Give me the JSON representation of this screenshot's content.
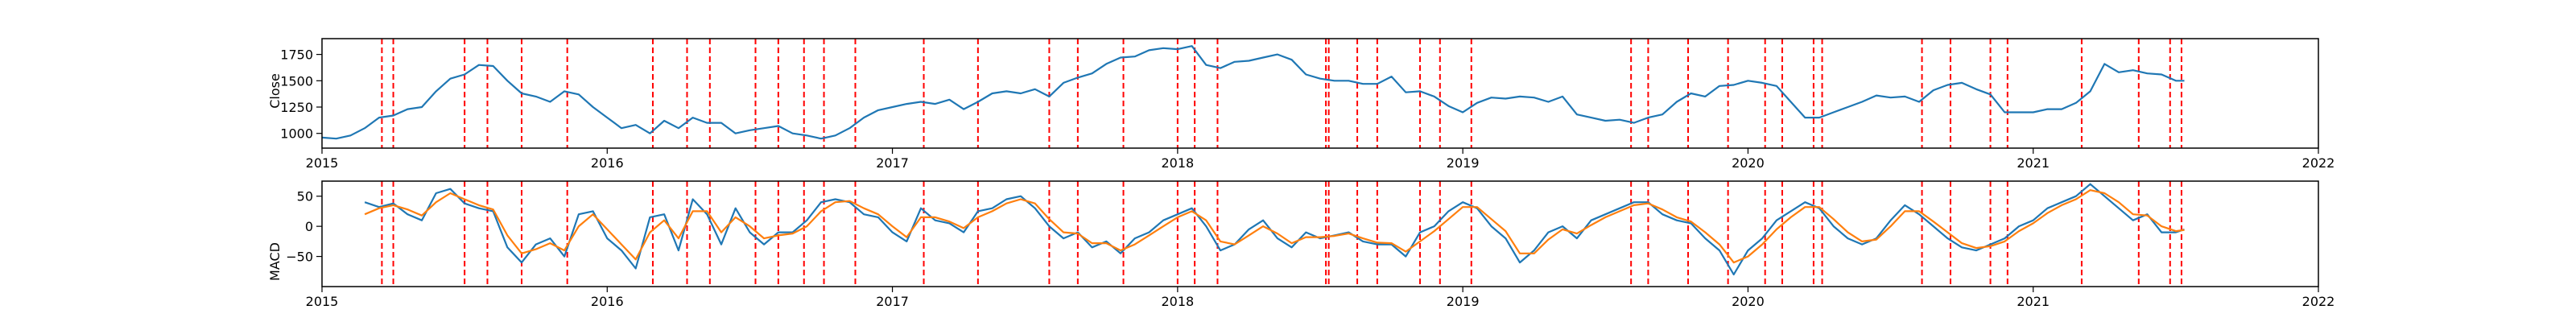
{
  "chart_data": [
    {
      "type": "line",
      "ylabel": "Close",
      "xlim": [
        2015.0,
        2022.0
      ],
      "ylim": [
        860,
        1900
      ],
      "x_ticks": [
        2015,
        2016,
        2017,
        2018,
        2019,
        2020,
        2021,
        2022
      ],
      "x_tick_labels": [
        "2015",
        "2016",
        "2017",
        "2018",
        "2019",
        "2020",
        "2021",
        "2022"
      ],
      "y_ticks": [
        1000,
        1250,
        1500,
        1750
      ],
      "y_tick_labels": [
        "1000",
        "1250",
        "1500",
        "1750"
      ],
      "grid": false,
      "colors": {
        "close": "#1f77b4",
        "events": "#ff0000"
      },
      "series": [
        {
          "x": [
            2015.0,
            2015.05,
            2015.1,
            2015.15,
            2015.2,
            2015.25,
            2015.3,
            2015.35,
            2015.4,
            2015.45,
            2015.5,
            2015.55,
            2015.6,
            2015.65,
            2015.7,
            2015.75,
            2015.8,
            2015.85,
            2015.9,
            2015.95,
            2016.0,
            2016.05,
            2016.1,
            2016.15,
            2016.2,
            2016.25,
            2016.3,
            2016.35,
            2016.4,
            2016.45,
            2016.5,
            2016.55,
            2016.6,
            2016.65,
            2016.7,
            2016.75,
            2016.8,
            2016.85,
            2016.9,
            2016.95,
            2017.0,
            2017.05,
            2017.1,
            2017.15,
            2017.2,
            2017.25,
            2017.3,
            2017.35,
            2017.4,
            2017.45,
            2017.5,
            2017.55,
            2017.6,
            2017.65,
            2017.7,
            2017.75,
            2017.8,
            2017.85,
            2017.9,
            2017.95,
            2018.0,
            2018.05,
            2018.1,
            2018.15,
            2018.2,
            2018.25,
            2018.3,
            2018.35,
            2018.4,
            2018.45,
            2018.5,
            2018.55,
            2018.6,
            2018.65,
            2018.7,
            2018.75,
            2018.8,
            2018.85,
            2018.9,
            2018.95,
            2019.0,
            2019.05,
            2019.1,
            2019.15,
            2019.2,
            2019.25,
            2019.3,
            2019.35,
            2019.4,
            2019.45,
            2019.5,
            2019.55,
            2019.6,
            2019.65,
            2019.7,
            2019.75,
            2019.8,
            2019.85,
            2019.9,
            2019.95,
            2020.0,
            2020.05,
            2020.1,
            2020.15,
            2020.2,
            2020.25,
            2020.3,
            2020.35,
            2020.4,
            2020.45,
            2020.5,
            2020.55,
            2020.6,
            2020.65,
            2020.7,
            2020.75,
            2020.8,
            2020.85,
            2020.9,
            2020.95,
            2021.0,
            2021.05,
            2021.1,
            2021.15,
            2021.2,
            2021.25,
            2021.3,
            2021.35,
            2021.4,
            2021.45,
            2021.5,
            2021.53
          ],
          "y": [
            960,
            950,
            980,
            1050,
            1150,
            1170,
            1230,
            1250,
            1400,
            1520,
            1560,
            1650,
            1640,
            1500,
            1380,
            1350,
            1300,
            1400,
            1370,
            1250,
            1150,
            1050,
            1080,
            1000,
            1120,
            1050,
            1150,
            1100,
            1100,
            1000,
            1030,
            1050,
            1070,
            1000,
            980,
            950,
            980,
            1050,
            1150,
            1220,
            1250,
            1280,
            1300,
            1280,
            1320,
            1230,
            1300,
            1380,
            1400,
            1380,
            1420,
            1350,
            1480,
            1530,
            1570,
            1660,
            1720,
            1730,
            1790,
            1810,
            1800,
            1830,
            1650,
            1620,
            1680,
            1690,
            1720,
            1750,
            1700,
            1560,
            1520,
            1500,
            1500,
            1470,
            1470,
            1540,
            1390,
            1400,
            1350,
            1260,
            1200,
            1290,
            1340,
            1330,
            1350,
            1340,
            1300,
            1350,
            1180,
            1150,
            1120,
            1130,
            1100,
            1150,
            1180,
            1300,
            1380,
            1350,
            1450,
            1460,
            1500,
            1480,
            1450,
            1300,
            1150,
            1150,
            1200,
            1250,
            1300,
            1360,
            1340,
            1350,
            1300,
            1410,
            1460,
            1480,
            1420,
            1370,
            1200,
            1200,
            1200,
            1230,
            1230,
            1290,
            1400,
            1660,
            1580,
            1600,
            1570,
            1560,
            1500,
            1500
          ]
        }
      ]
    },
    {
      "type": "line",
      "ylabel": "MACD",
      "xlim": [
        2015.0,
        2022.0
      ],
      "ylim": [
        -100,
        75
      ],
      "x_ticks": [
        2015,
        2016,
        2017,
        2018,
        2019,
        2020,
        2021,
        2022
      ],
      "x_tick_labels": [
        "2015",
        "2016",
        "2017",
        "2018",
        "2019",
        "2020",
        "2021",
        "2022"
      ],
      "y_ticks": [
        -50,
        0,
        50
      ],
      "y_tick_labels": [
        "−50",
        "0",
        "50"
      ],
      "grid": false,
      "colors": {
        "macd": "#1f77b4",
        "signal": "#ff7f0e",
        "events": "#ff0000"
      },
      "series": [
        {
          "x": [
            2015.15,
            2015.2,
            2015.25,
            2015.3,
            2015.35,
            2015.4,
            2015.45,
            2015.5,
            2015.55,
            2015.6,
            2015.65,
            2015.7,
            2015.75,
            2015.8,
            2015.85,
            2015.9,
            2015.95,
            2016.0,
            2016.05,
            2016.1,
            2016.15,
            2016.2,
            2016.25,
            2016.3,
            2016.35,
            2016.4,
            2016.45,
            2016.5,
            2016.55,
            2016.6,
            2016.65,
            2016.7,
            2016.75,
            2016.8,
            2016.85,
            2016.9,
            2016.95,
            2017.0,
            2017.05,
            2017.1,
            2017.15,
            2017.2,
            2017.25,
            2017.3,
            2017.35,
            2017.4,
            2017.45,
            2017.5,
            2017.55,
            2017.6,
            2017.65,
            2017.7,
            2017.75,
            2017.8,
            2017.85,
            2017.9,
            2017.95,
            2018.0,
            2018.05,
            2018.1,
            2018.15,
            2018.2,
            2018.25,
            2018.3,
            2018.35,
            2018.4,
            2018.45,
            2018.5,
            2018.55,
            2018.6,
            2018.65,
            2018.7,
            2018.75,
            2018.8,
            2018.85,
            2018.9,
            2018.95,
            2019.0,
            2019.05,
            2019.1,
            2019.15,
            2019.2,
            2019.25,
            2019.3,
            2019.35,
            2019.4,
            2019.45,
            2019.5,
            2019.55,
            2019.6,
            2019.65,
            2019.7,
            2019.75,
            2019.8,
            2019.85,
            2019.9,
            2019.95,
            2020.0,
            2020.05,
            2020.1,
            2020.15,
            2020.2,
            2020.25,
            2020.3,
            2020.35,
            2020.4,
            2020.45,
            2020.5,
            2020.55,
            2020.6,
            2020.65,
            2020.7,
            2020.75,
            2020.8,
            2020.85,
            2020.9,
            2020.95,
            2021.0,
            2021.05,
            2021.1,
            2021.15,
            2021.2,
            2021.25,
            2021.3,
            2021.35,
            2021.4,
            2021.45,
            2021.5,
            2021.53
          ],
          "y": [
            40,
            32,
            38,
            20,
            10,
            55,
            62,
            38,
            30,
            25,
            -35,
            -60,
            -30,
            -20,
            -50,
            20,
            25,
            -20,
            -40,
            -70,
            15,
            20,
            -40,
            45,
            20,
            -30,
            30,
            -10,
            -30,
            -10,
            -10,
            10,
            40,
            45,
            40,
            20,
            15,
            -10,
            -25,
            30,
            10,
            5,
            -10,
            25,
            30,
            45,
            50,
            30,
            0,
            -20,
            -10,
            -35,
            -25,
            -45,
            -20,
            -10,
            10,
            20,
            30,
            0,
            -40,
            -30,
            -5,
            10,
            -20,
            -35,
            -10,
            -20,
            -15,
            -10,
            -25,
            -30,
            -30,
            -50,
            -10,
            0,
            25,
            40,
            30,
            0,
            -20,
            -60,
            -40,
            -10,
            0,
            -20,
            10,
            20,
            30,
            40,
            40,
            20,
            10,
            5,
            -20,
            -40,
            -80,
            -40,
            -20,
            10,
            25,
            40,
            30,
            0,
            -20,
            -30,
            -20,
            10,
            35,
            20,
            0,
            -20,
            -35,
            -40,
            -30,
            -20,
            0,
            10,
            30,
            40,
            50,
            70,
            50,
            30,
            10,
            20,
            -10,
            -10,
            -5
          ]
        },
        {
          "x": [
            2015.15,
            2015.2,
            2015.25,
            2015.3,
            2015.35,
            2015.4,
            2015.45,
            2015.5,
            2015.55,
            2015.6,
            2015.65,
            2015.7,
            2015.75,
            2015.8,
            2015.85,
            2015.9,
            2015.95,
            2016.0,
            2016.05,
            2016.1,
            2016.15,
            2016.2,
            2016.25,
            2016.3,
            2016.35,
            2016.4,
            2016.45,
            2016.5,
            2016.55,
            2016.6,
            2016.65,
            2016.7,
            2016.75,
            2016.8,
            2016.85,
            2016.9,
            2016.95,
            2017.0,
            2017.05,
            2017.1,
            2017.15,
            2017.2,
            2017.25,
            2017.3,
            2017.35,
            2017.4,
            2017.45,
            2017.5,
            2017.55,
            2017.6,
            2017.65,
            2017.7,
            2017.75,
            2017.8,
            2017.85,
            2017.9,
            2017.95,
            2018.0,
            2018.05,
            2018.1,
            2018.15,
            2018.2,
            2018.25,
            2018.3,
            2018.35,
            2018.4,
            2018.45,
            2018.5,
            2018.55,
            2018.6,
            2018.65,
            2018.7,
            2018.75,
            2018.8,
            2018.85,
            2018.9,
            2018.95,
            2019.0,
            2019.05,
            2019.1,
            2019.15,
            2019.2,
            2019.25,
            2019.3,
            2019.35,
            2019.4,
            2019.45,
            2019.5,
            2019.55,
            2019.6,
            2019.65,
            2019.7,
            2019.75,
            2019.8,
            2019.85,
            2019.9,
            2019.95,
            2020.0,
            2020.05,
            2020.1,
            2020.15,
            2020.2,
            2020.25,
            2020.3,
            2020.35,
            2020.4,
            2020.45,
            2020.5,
            2020.55,
            2020.6,
            2020.65,
            2020.7,
            2020.75,
            2020.8,
            2020.85,
            2020.9,
            2020.95,
            2021.0,
            2021.05,
            2021.1,
            2021.15,
            2021.2,
            2021.25,
            2021.3,
            2021.35,
            2021.4,
            2021.45,
            2021.5,
            2021.53
          ],
          "y": [
            20,
            30,
            35,
            28,
            18,
            40,
            55,
            45,
            35,
            28,
            -15,
            -45,
            -38,
            -28,
            -40,
            0,
            20,
            -5,
            -30,
            -55,
            -10,
            10,
            -20,
            25,
            25,
            -10,
            15,
            0,
            -20,
            -15,
            -12,
            0,
            25,
            40,
            42,
            30,
            20,
            0,
            -18,
            15,
            15,
            8,
            -3,
            15,
            25,
            38,
            45,
            38,
            12,
            -10,
            -12,
            -28,
            -28,
            -40,
            -30,
            -15,
            0,
            15,
            25,
            10,
            -25,
            -30,
            -15,
            0,
            -12,
            -28,
            -18,
            -18,
            -16,
            -12,
            -20,
            -27,
            -28,
            -42,
            -25,
            -8,
            12,
            32,
            32,
            12,
            -8,
            -45,
            -45,
            -22,
            -5,
            -12,
            2,
            15,
            25,
            35,
            38,
            28,
            15,
            8,
            -10,
            -30,
            -60,
            -50,
            -30,
            -5,
            15,
            32,
            32,
            12,
            -10,
            -25,
            -22,
            0,
            25,
            25,
            8,
            -10,
            -28,
            -36,
            -33,
            -25,
            -8,
            5,
            22,
            35,
            45,
            60,
            55,
            40,
            20,
            18,
            0,
            -8,
            -6
          ]
        }
      ]
    }
  ],
  "events": [
    2015.21,
    2015.25,
    2015.5,
    2015.58,
    2015.7,
    2015.86,
    2016.16,
    2016.28,
    2016.36,
    2016.52,
    2016.6,
    2016.69,
    2016.76,
    2016.87,
    2017.11,
    2017.3,
    2017.55,
    2017.65,
    2017.81,
    2018.0,
    2018.06,
    2018.14,
    2018.52,
    2018.53,
    2018.63,
    2018.7,
    2018.85,
    2018.92,
    2019.03,
    2019.59,
    2019.65,
    2019.79,
    2019.93,
    2020.06,
    2020.12,
    2020.23,
    2020.26,
    2020.61,
    2020.71,
    2020.85,
    2020.91,
    2021.17,
    2021.37,
    2021.48,
    2021.52
  ]
}
